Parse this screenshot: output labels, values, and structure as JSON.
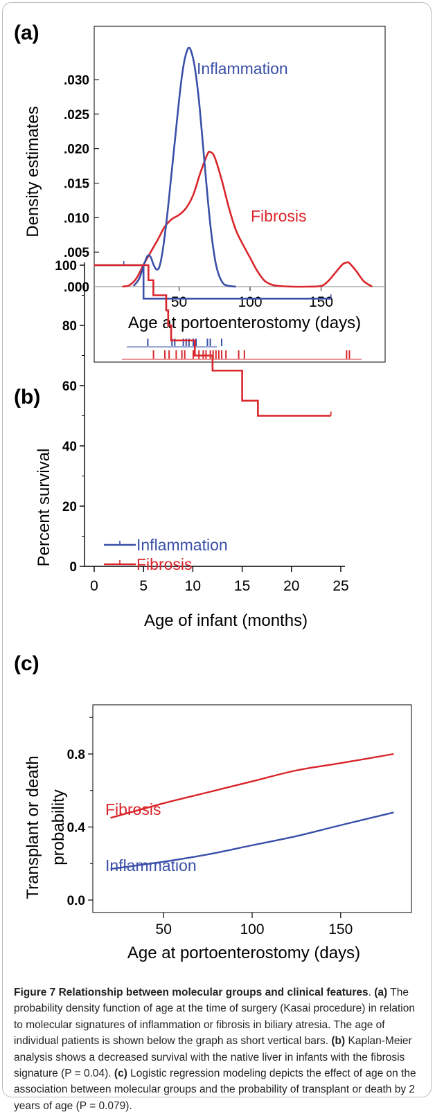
{
  "colors": {
    "inflammation": "#3a4fa8",
    "fibrosis": "#d9252a",
    "axis": "#000000",
    "baseline": "#9a9a9a"
  },
  "caption": {
    "title": "Figure 7 Relationship between molecular groups and clinical features",
    "a_label": "(a)",
    "a_text": "The probability density function of age at the time of surgery (Kasai procedure) in relation to molecular signatures of inflammation or fibrosis in biliary atresia. The age of individual patients is shown below the graph as short vertical bars.",
    "b_label": "(b)",
    "b_text": "Kaplan-Meier analysis shows a decreased survival with the native liver in infants with the fibrosis signature (P = 0.04).",
    "c_label": "(c)",
    "c_text": "Logistic regression modeling depicts the effect of age on the association between molecular groups and the probability of transplant or death by 2 years of age (P = 0.079)."
  },
  "chart_data": [
    {
      "panel": "(a)",
      "type": "line",
      "xlabel": "Age at portoenterostomy (days)",
      "ylabel": "Density estimates",
      "xlim": [
        0,
        200
      ],
      "ylim": [
        0,
        0.0345
      ],
      "x_ticks": [
        50,
        100,
        150
      ],
      "y_ticks": [
        ".000",
        ".005",
        ".010",
        ".015",
        ".020",
        ".025",
        ".030"
      ],
      "y_tick_values": [
        0,
        0.005,
        0.01,
        0.015,
        0.02,
        0.025,
        0.03
      ],
      "series": [
        {
          "name": "Inflammation",
          "color_key": "inflammation",
          "x": [
            18,
            22,
            26,
            28,
            30,
            32,
            34,
            36,
            38,
            40,
            42,
            44,
            46,
            48,
            50,
            52,
            54,
            56,
            57,
            58,
            60,
            62,
            64,
            66,
            68,
            70,
            72,
            74,
            76,
            78,
            80,
            82,
            85,
            88,
            90
          ],
          "y": [
            0.0001,
            0.0012,
            0.0036,
            0.0045,
            0.0043,
            0.0032,
            0.0025,
            0.0028,
            0.0046,
            0.0075,
            0.011,
            0.015,
            0.019,
            0.023,
            0.027,
            0.0305,
            0.033,
            0.0344,
            0.0346,
            0.0344,
            0.033,
            0.0305,
            0.027,
            0.0225,
            0.0178,
            0.0132,
            0.009,
            0.0057,
            0.0032,
            0.0017,
            0.0008,
            0.0003,
            0.0001,
            3e-05,
            0.0
          ]
        },
        {
          "name": "Fibrosis",
          "color_key": "fibrosis",
          "x": [
            10,
            15,
            20,
            25,
            30,
            35,
            40,
            45,
            50,
            55,
            60,
            65,
            70,
            72,
            75,
            80,
            85,
            90,
            95,
            100,
            105,
            110,
            115,
            120,
            130,
            140,
            150,
            155,
            160,
            165,
            168,
            170,
            175,
            180,
            186
          ],
          "y": [
            0.0,
            0.0002,
            0.0012,
            0.0032,
            0.005,
            0.0068,
            0.0087,
            0.0098,
            0.0104,
            0.0114,
            0.0133,
            0.0165,
            0.0192,
            0.0195,
            0.0188,
            0.0155,
            0.0115,
            0.0082,
            0.0061,
            0.0042,
            0.0023,
            0.0009,
            0.0003,
            0.0001,
            0.0,
            0.0,
            0.0001,
            0.0008,
            0.002,
            0.0032,
            0.0035,
            0.0034,
            0.0022,
            0.0008,
            0.0
          ]
        }
      ],
      "rug": {
        "inflammation": [
          28,
          45,
          47,
          53,
          55,
          57,
          60,
          62,
          70,
          72,
          80
        ],
        "fibrosis": [
          32,
          40,
          43,
          48,
          52,
          54,
          60,
          64,
          67,
          69,
          72,
          74,
          76,
          78,
          80,
          83,
          92,
          96,
          168,
          170
        ]
      }
    },
    {
      "panel": "(b)",
      "type": "line",
      "xlabel": "Age of infant (months)",
      "ylabel": "Percent survival",
      "xlim": [
        0,
        25
      ],
      "ylim": [
        0,
        100
      ],
      "x_ticks": [
        0,
        5,
        10,
        15,
        20,
        25
      ],
      "y_ticks": [
        0,
        20,
        40,
        60,
        80,
        100
      ],
      "legend": "bottom-left",
      "series": [
        {
          "name": "Inflammation",
          "color_key": "inflammation",
          "step_x": [
            0,
            5,
            24
          ],
          "step_y": [
            100,
            88.9,
            88.9
          ],
          "censor_x": [
            3,
            24
          ]
        },
        {
          "name": "Fibrosis",
          "color_key": "fibrosis",
          "step_x": [
            0,
            5.5,
            6.0,
            7.3,
            7.5,
            7.8,
            10.2,
            12.0,
            15.0,
            16.6,
            24
          ],
          "step_y": [
            100,
            95,
            90,
            85,
            80,
            75,
            70,
            65,
            55,
            50,
            50
          ],
          "censor_x": [
            24
          ]
        }
      ]
    },
    {
      "panel": "(c)",
      "type": "line",
      "xlabel": "Age at portoenterostomy (days)",
      "ylabel": "Transplant or death probability",
      "xlim": [
        10,
        190
      ],
      "ylim": [
        0,
        1.0
      ],
      "x_ticks": [
        50,
        100,
        150
      ],
      "y_ticks": [
        "0.0",
        "0.4",
        "0.8"
      ],
      "y_tick_values": [
        0,
        0.4,
        0.8
      ],
      "series": [
        {
          "name": "Fibrosis",
          "color_key": "fibrosis",
          "x": [
            20,
            50,
            75,
            100,
            125,
            150,
            180
          ],
          "y": [
            0.45,
            0.53,
            0.59,
            0.65,
            0.71,
            0.75,
            0.8
          ]
        },
        {
          "name": "Inflammation",
          "color_key": "inflammation",
          "x": [
            20,
            50,
            75,
            100,
            125,
            150,
            180
          ],
          "y": [
            0.17,
            0.21,
            0.25,
            0.3,
            0.35,
            0.41,
            0.48
          ]
        }
      ]
    }
  ]
}
